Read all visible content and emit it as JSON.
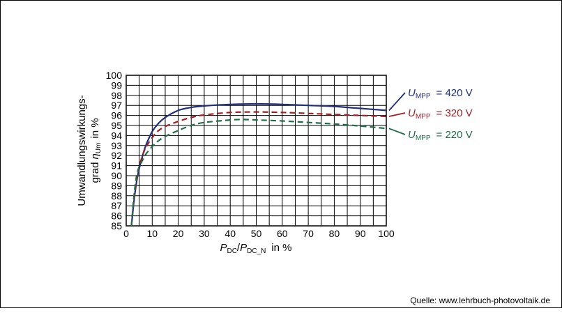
{
  "chart_data": {
    "type": "line",
    "xlabel": {
      "var": "P",
      "sub1": "DC",
      "sep": "/",
      "var2": "P",
      "sub2": "DC_N",
      "unit": "in %"
    },
    "ylabel": {
      "line1": "Umwandlungswirkungs-",
      "line2_prefix": "grad",
      "var": "η",
      "sub": "Um",
      "unit": "in %"
    },
    "xlim": [
      0,
      100
    ],
    "ylim": [
      85,
      100
    ],
    "x_ticks": [
      "0",
      "10",
      "20",
      "30",
      "40",
      "50",
      "60",
      "70",
      "80",
      "90",
      "100"
    ],
    "y_ticks": [
      "85",
      "86",
      "87",
      "88",
      "89",
      "90",
      "91",
      "92",
      "93",
      "94",
      "95",
      "96",
      "97",
      "98",
      "99",
      "100"
    ],
    "grid": true,
    "series": [
      {
        "name": "U_MPP = 420 V",
        "label": {
          "var": "U",
          "sub": "MPP",
          "text": "= 420 V"
        },
        "color": "#1f2f7a",
        "dash": "solid",
        "x": [
          2,
          3,
          4,
          5,
          6,
          7,
          8,
          10,
          12,
          15,
          20,
          25,
          30,
          40,
          50,
          60,
          70,
          80,
          90,
          100
        ],
        "y": [
          85.0,
          87.5,
          89.4,
          90.7,
          91.7,
          92.6,
          93.3,
          94.4,
          95.1,
          95.8,
          96.5,
          96.8,
          96.95,
          97.1,
          97.15,
          97.1,
          97.0,
          96.9,
          96.7,
          96.5
        ]
      },
      {
        "name": "U_MPP = 320 V",
        "label": {
          "var": "U",
          "sub": "MPP",
          "text": "= 320 V"
        },
        "color": "#a31f24",
        "dash": "dashed",
        "x": [
          2,
          3,
          4,
          5,
          6,
          7,
          8,
          10,
          12,
          15,
          20,
          25,
          30,
          40,
          50,
          60,
          70,
          80,
          90,
          100
        ],
        "y": [
          85.0,
          87.7,
          89.6,
          90.9,
          91.8,
          92.5,
          93.0,
          93.8,
          94.4,
          94.9,
          95.4,
          95.8,
          96.05,
          96.3,
          96.35,
          96.3,
          96.2,
          96.1,
          96.0,
          95.9
        ]
      },
      {
        "name": "U_MPP = 220 V",
        "label": {
          "var": "U",
          "sub": "MPP",
          "text": "= 220 V"
        },
        "color": "#1e6e45",
        "dash": "dashed",
        "x": [
          2,
          3,
          4,
          5,
          6,
          7,
          8,
          10,
          12,
          15,
          20,
          25,
          30,
          40,
          45,
          50,
          60,
          70,
          80,
          90,
          100
        ],
        "y": [
          85.0,
          88.0,
          90.0,
          90.9,
          91.4,
          91.9,
          92.3,
          92.9,
          93.4,
          93.9,
          94.5,
          95.0,
          95.3,
          95.55,
          95.6,
          95.55,
          95.45,
          95.3,
          95.15,
          94.95,
          94.7
        ]
      }
    ]
  },
  "source_text": "Quelle: www.lehrbuch-photovoltaik.de"
}
